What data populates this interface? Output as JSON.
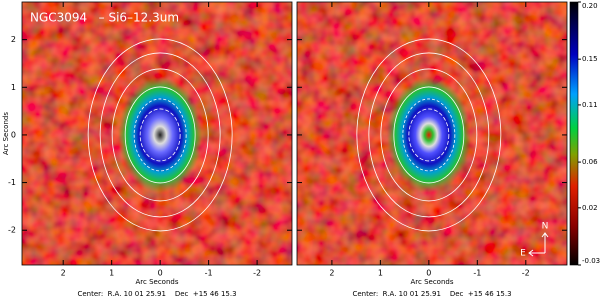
{
  "chart_data": [
    {
      "type": "image",
      "title": "NGC3094   – Si6–12.3um",
      "xlabel": "Arc Seconds",
      "ylabel": "Arc Seconds",
      "footer": "Center:  R.A. 10 01 25.91    Dec  +15 46 15.3",
      "xlim": [
        2.85,
        -2.72
      ],
      "ylim": [
        -2.73,
        2.79
      ],
      "xticks": [
        2,
        1,
        0,
        -1,
        -2
      ],
      "yticks": [
        -2,
        -1,
        0,
        1,
        2
      ]
    },
    {
      "type": "image",
      "xlabel": "Arc Seconds",
      "footer": "Center:  R.A. 10 01 25.91    Dec  +15 46 15.3",
      "xlim": [
        2.72,
        -2.85
      ],
      "ylim": [
        -2.73,
        2.79
      ],
      "xticks": [
        2,
        1,
        0,
        -1,
        -2
      ],
      "yticks": [
        -2,
        -1,
        0,
        1,
        2
      ],
      "compass": {
        "north": "N",
        "east": "E"
      },
      "colorbar": {
        "lim": [
          -0.03,
          0.2
        ],
        "ticks": [
          -0.03,
          0.02,
          0.06,
          0.11,
          0.15,
          {
            "value": 0.2,
            "label": "0.20"
          }
        ]
      }
    }
  ]
}
